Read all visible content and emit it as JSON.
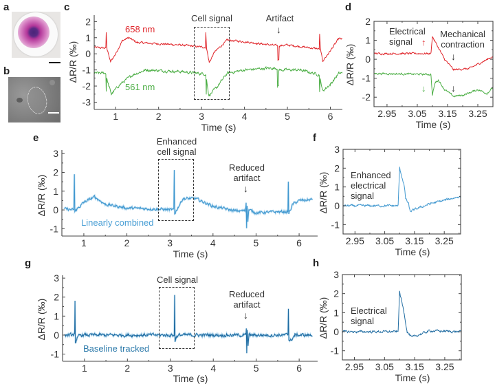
{
  "panels": {
    "a": "a",
    "b": "b",
    "c": "c",
    "d": "d",
    "e": "e",
    "f": "f",
    "g": "g",
    "h": "h"
  },
  "chart_data": [
    {
      "id": "c",
      "type": "line",
      "xlabel": "Time (s)",
      "ylabel": "ΔR/R (‰)",
      "xlim": [
        0.5,
        6.28
      ],
      "ylim": [
        -3.45,
        2.4
      ],
      "xticks": [
        1,
        2,
        3,
        4,
        5,
        6
      ],
      "xtick_labels": [
        "1",
        "2",
        "3",
        "4",
        "5",
        "6"
      ],
      "xminor": [
        1.5,
        2.5,
        3.5,
        4.5,
        5.5
      ],
      "yticks": [
        2,
        1,
        0,
        -1,
        -2,
        -3
      ],
      "ytick_labels": [
        "2",
        "1",
        "0",
        "-1",
        "-2",
        "-3"
      ],
      "annotations": [
        "Cell signal",
        "Artifact"
      ],
      "series": [
        {
          "name": "658 nm",
          "color": "#e0262b",
          "noise": 0.05,
          "keypoints": [
            [
              0.5,
              0.4
            ],
            [
              0.77,
              0.35
            ],
            [
              0.78,
              1.3
            ],
            [
              0.8,
              0.3
            ],
            [
              0.88,
              -0.5
            ],
            [
              1.0,
              0.0
            ],
            [
              1.15,
              0.8
            ],
            [
              1.3,
              1.0
            ],
            [
              1.5,
              0.7
            ],
            [
              2.5,
              0.55
            ],
            [
              3.09,
              0.4
            ],
            [
              3.1,
              1.3
            ],
            [
              3.12,
              0.3
            ],
            [
              3.18,
              -0.55
            ],
            [
              3.3,
              0.1
            ],
            [
              3.6,
              0.85
            ],
            [
              4.0,
              0.75
            ],
            [
              4.77,
              0.5
            ],
            [
              4.78,
              -0.4
            ],
            [
              4.8,
              -0.3
            ],
            [
              4.81,
              0.5
            ],
            [
              5.0,
              0.55
            ],
            [
              5.74,
              0.3
            ],
            [
              5.75,
              1.2
            ],
            [
              5.77,
              0.3
            ],
            [
              5.82,
              -0.45
            ],
            [
              5.95,
              0.0
            ],
            [
              6.2,
              0.95
            ],
            [
              6.28,
              0.9
            ]
          ]
        },
        {
          "name": "561 nm",
          "color": "#4cae45",
          "noise": 0.07,
          "keypoints": [
            [
              0.5,
              -1.2
            ],
            [
              0.77,
              -1.2
            ],
            [
              0.78,
              -2.3
            ],
            [
              0.79,
              -1.5
            ],
            [
              0.84,
              -2.0
            ],
            [
              0.9,
              -2.5
            ],
            [
              1.1,
              -1.9
            ],
            [
              1.4,
              -1.3
            ],
            [
              1.7,
              -1.0
            ],
            [
              2.5,
              -1.1
            ],
            [
              3.09,
              -1.25
            ],
            [
              3.1,
              -1.3
            ],
            [
              3.11,
              -2.5
            ],
            [
              3.12,
              -1.6
            ],
            [
              3.17,
              -2.6
            ],
            [
              3.35,
              -2.1
            ],
            [
              3.6,
              -1.2
            ],
            [
              4.0,
              -1.0
            ],
            [
              4.5,
              -0.9
            ],
            [
              4.76,
              -0.9
            ],
            [
              4.77,
              -2.0
            ],
            [
              4.79,
              -2.0
            ],
            [
              4.8,
              -1.0
            ],
            [
              5.3,
              -1.0
            ],
            [
              5.74,
              -1.3
            ],
            [
              5.75,
              -2.3
            ],
            [
              5.77,
              -1.6
            ],
            [
              5.82,
              -2.3
            ],
            [
              6.0,
              -1.9
            ],
            [
              6.2,
              -1.2
            ],
            [
              6.28,
              -1.2
            ]
          ]
        }
      ]
    },
    {
      "id": "d",
      "type": "line",
      "xlabel": "Time (s)",
      "ylabel": "ΔR/R (‰)",
      "xlim": [
        2.907,
        3.3
      ],
      "ylim": [
        -2.5,
        2.0
      ],
      "xticks": [
        2.95,
        3.05,
        3.15,
        3.25
      ],
      "xtick_labels": [
        "2.95",
        "3.05",
        "3.15",
        "3.25"
      ],
      "xminor": [
        3.0,
        3.1,
        3.2,
        3.3
      ],
      "yticks": [
        2,
        1,
        0,
        -1,
        -2
      ],
      "ytick_labels": [
        "2",
        "1",
        "0",
        "-1",
        "-2"
      ],
      "annotations": [
        "Electrical",
        "signal",
        "Mechanical",
        "contraction"
      ],
      "series": [
        {
          "name": "658 nm",
          "color": "#e0262b",
          "noise": 0.04,
          "keypoints": [
            [
              2.907,
              0.3
            ],
            [
              3.095,
              0.3
            ],
            [
              3.1,
              1.2
            ],
            [
              3.12,
              0.6
            ],
            [
              3.14,
              0.0
            ],
            [
              3.17,
              -0.55
            ],
            [
              3.22,
              -0.5
            ],
            [
              3.27,
              -0.1
            ],
            [
              3.3,
              0.15
            ]
          ]
        },
        {
          "name": "561 nm",
          "color": "#4cae45",
          "noise": 0.04,
          "keypoints": [
            [
              2.907,
              -0.75
            ],
            [
              3.095,
              -0.8
            ],
            [
              3.1,
              -1.9
            ],
            [
              3.105,
              -1.5
            ],
            [
              3.11,
              -1.2
            ],
            [
              3.12,
              -1.1
            ],
            [
              3.14,
              -1.6
            ],
            [
              3.17,
              -1.95
            ],
            [
              3.2,
              -1.9
            ],
            [
              3.25,
              -1.6
            ],
            [
              3.28,
              -1.8
            ],
            [
              3.3,
              -1.5
            ]
          ]
        }
      ]
    },
    {
      "id": "e",
      "type": "line",
      "xlabel": "Time (s)",
      "ylabel": "ΔR/R (‰)",
      "xlim": [
        0.49,
        6.43
      ],
      "ylim": [
        -1.39,
        3.19
      ],
      "xticks": [
        1,
        2,
        3,
        4,
        5,
        6
      ],
      "xtick_labels": [
        "1",
        "2",
        "3",
        "4",
        "5",
        "6"
      ],
      "xminor": [
        1.5,
        2.5,
        3.5,
        4.5,
        5.5
      ],
      "yticks": [
        3,
        2,
        1,
        0,
        -1
      ],
      "ytick_labels": [
        "3",
        "2",
        "1",
        "0",
        "-1"
      ],
      "annotations": [
        "Enhanced",
        "cell signal",
        "Reduced",
        "artifact"
      ],
      "series": [
        {
          "name": "Linearly combined",
          "color": "#3f97cf",
          "noise": 0.06,
          "keypoints": [
            [
              0.55,
              0.05
            ],
            [
              0.77,
              0.0
            ],
            [
              0.78,
              1.9
            ],
            [
              0.79,
              -0.1
            ],
            [
              0.82,
              0.0
            ],
            [
              1.0,
              0.4
            ],
            [
              1.25,
              0.7
            ],
            [
              1.5,
              0.3
            ],
            [
              2.0,
              0.1
            ],
            [
              2.7,
              0.05
            ],
            [
              3.09,
              0.0
            ],
            [
              3.1,
              2.1
            ],
            [
              3.11,
              -0.2
            ],
            [
              3.13,
              -0.1
            ],
            [
              3.3,
              0.6
            ],
            [
              3.6,
              0.6
            ],
            [
              4.0,
              0.2
            ],
            [
              4.5,
              -0.05
            ],
            [
              4.75,
              -0.05
            ],
            [
              4.77,
              0.4
            ],
            [
              4.78,
              -0.9
            ],
            [
              4.79,
              0.3
            ],
            [
              4.81,
              -0.6
            ],
            [
              4.83,
              0.0
            ],
            [
              5.0,
              -0.15
            ],
            [
              5.5,
              -0.1
            ],
            [
              5.74,
              -0.1
            ],
            [
              5.75,
              1.5
            ],
            [
              5.76,
              -0.2
            ],
            [
              5.85,
              0.3
            ],
            [
              6.0,
              0.5
            ],
            [
              6.3,
              0.55
            ]
          ]
        }
      ]
    },
    {
      "id": "f",
      "type": "line",
      "xlabel": "Time (s)",
      "ylabel": "ΔR/R (‰)",
      "xlim": [
        2.91,
        3.305
      ],
      "ylim": [
        -1.5,
        3.0
      ],
      "xticks": [
        2.95,
        3.05,
        3.15,
        3.25
      ],
      "xtick_labels": [
        "2.95",
        "3.05",
        "3.15",
        "3.25"
      ],
      "xminor": [
        3.0,
        3.1,
        3.2,
        3.3
      ],
      "yticks": [
        3,
        2,
        1,
        0,
        -1
      ],
      "ytick_labels": [
        "3",
        "2",
        "1",
        "0",
        "-1"
      ],
      "annotations": [
        "Enhanced",
        "electrical",
        "signal"
      ],
      "series": [
        {
          "name": "Linearly combined",
          "color": "#3f97cf",
          "noise": 0.05,
          "keypoints": [
            [
              2.91,
              0.0
            ],
            [
              3.095,
              0.0
            ],
            [
              3.1,
              2.0
            ],
            [
              3.115,
              1.1
            ],
            [
              3.12,
              0.4
            ],
            [
              3.13,
              0.1
            ],
            [
              3.135,
              -0.3
            ],
            [
              3.2,
              0.1
            ],
            [
              3.305,
              0.5
            ]
          ]
        }
      ]
    },
    {
      "id": "g",
      "type": "line",
      "xlabel": "Time (s)",
      "ylabel": "ΔR/R (‰)",
      "xlim": [
        0.49,
        6.43
      ],
      "ylim": [
        -1.38,
        3.15
      ],
      "xticks": [
        1,
        2,
        3,
        4,
        5,
        6
      ],
      "xtick_labels": [
        "1",
        "2",
        "3",
        "4",
        "5",
        "6"
      ],
      "xminor": [
        1.5,
        2.5,
        3.5,
        4.5,
        5.5
      ],
      "yticks": [
        3,
        2,
        1,
        0,
        -1
      ],
      "ytick_labels": [
        "3",
        "2",
        "1",
        "0",
        "-1"
      ],
      "annotations": [
        "Cell signal",
        "Reduced",
        "artifact"
      ],
      "series": [
        {
          "name": "Baseline tracked",
          "color": "#1d6aa0",
          "noise": 0.07,
          "keypoints": [
            [
              0.55,
              0
            ],
            [
              0.77,
              0
            ],
            [
              0.78,
              1.7
            ],
            [
              0.79,
              -0.4
            ],
            [
              0.82,
              -0.2
            ],
            [
              0.9,
              0
            ],
            [
              3.09,
              0
            ],
            [
              3.1,
              2.1
            ],
            [
              3.11,
              -0.3
            ],
            [
              3.13,
              -0.1
            ],
            [
              3.2,
              0
            ],
            [
              4.76,
              0
            ],
            [
              4.77,
              0.3
            ],
            [
              4.78,
              -1.0
            ],
            [
              4.79,
              0.2
            ],
            [
              4.81,
              -0.5
            ],
            [
              4.83,
              0
            ],
            [
              5.74,
              0
            ],
            [
              5.75,
              1.4
            ],
            [
              5.76,
              -0.2
            ],
            [
              5.8,
              -0.3
            ],
            [
              5.9,
              0
            ],
            [
              6.3,
              0
            ]
          ]
        }
      ]
    },
    {
      "id": "h",
      "type": "line",
      "xlabel": "Time (s)",
      "ylabel": "ΔR/R (‰)",
      "xlim": [
        2.91,
        3.305
      ],
      "ylim": [
        -1.48,
        3.0
      ],
      "xticks": [
        2.95,
        3.05,
        3.15,
        3.25
      ],
      "xtick_labels": [
        "2.95",
        "3.05",
        "3.15",
        "3.25"
      ],
      "xminor": [
        3.0,
        3.1,
        3.2,
        3.3
      ],
      "yticks": [
        3,
        2,
        1,
        0,
        -1
      ],
      "ytick_labels": [
        "3",
        "2",
        "1",
        "0",
        "-1"
      ],
      "annotations": [
        "Electrical",
        "signal"
      ],
      "series": [
        {
          "name": "Baseline tracked",
          "color": "#1d6aa0",
          "noise": 0.05,
          "keypoints": [
            [
              2.91,
              0
            ],
            [
              3.095,
              0
            ],
            [
              3.1,
              2.1
            ],
            [
              3.115,
              1.0
            ],
            [
              3.125,
              0.0
            ],
            [
              3.14,
              -0.3
            ],
            [
              3.2,
              0.05
            ],
            [
              3.305,
              0.0
            ]
          ]
        }
      ]
    }
  ]
}
